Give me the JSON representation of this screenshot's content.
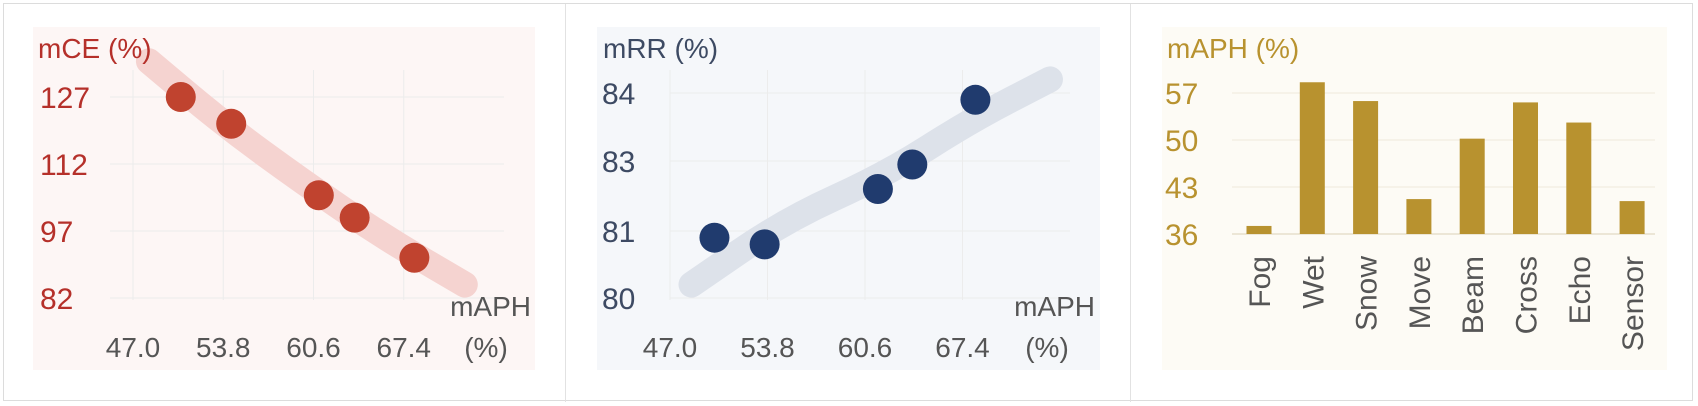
{
  "colors": {
    "red": "#b5302a",
    "red_marker": "#c0432f",
    "red_band": "#f5d3d0",
    "red_panel_bg": "#fdf6f5",
    "navy": "#203b6e",
    "navy_text": "#3d4a63",
    "navy_band": "#dde2ea",
    "navy_panel_bg": "#f5f7fa",
    "gold": "#b8922f",
    "gold_panel_bg": "#fdfbf5",
    "axis_text": "#555555"
  },
  "chart_data": [
    {
      "type": "scatter",
      "title": "",
      "ylabel": "mCE (%)",
      "xlabel_line1": "mAPH",
      "xlabel_line2": "(%)",
      "x_ticks": [
        "47.0",
        "53.8",
        "60.6",
        "67.4"
      ],
      "y_ticks": [
        "82",
        "97",
        "112",
        "127"
      ],
      "xlim": [
        47.0,
        74.2
      ],
      "ylim": [
        82,
        127
      ],
      "grid": true,
      "points": [
        {
          "x": 50.6,
          "y": 127
        },
        {
          "x": 54.4,
          "y": 121
        },
        {
          "x": 61.0,
          "y": 105
        },
        {
          "x": 63.7,
          "y": 100
        },
        {
          "x": 68.2,
          "y": 91
        }
      ],
      "trend": [
        {
          "x": 48.2,
          "y": 135
        },
        {
          "x": 53.8,
          "y": 121
        },
        {
          "x": 59.8,
          "y": 108
        },
        {
          "x": 65.7,
          "y": 96
        },
        {
          "x": 72.0,
          "y": 85
        }
      ]
    },
    {
      "type": "scatter",
      "title": "",
      "ylabel": "mRR (%)",
      "xlabel_line1": "mAPH",
      "xlabel_line2": "(%)",
      "x_ticks": [
        "47.0",
        "53.8",
        "60.6",
        "67.4"
      ],
      "y_ticks": [
        "80",
        "81",
        "83",
        "84"
      ],
      "xlim": [
        47.0,
        74.2
      ],
      "ylim": [
        80,
        84
      ],
      "grid": true,
      "points": [
        {
          "x": 50.1,
          "y": 80.9
        },
        {
          "x": 53.6,
          "y": 80.8
        },
        {
          "x": 61.5,
          "y": 82.2
        },
        {
          "x": 63.9,
          "y": 82.9
        },
        {
          "x": 68.3,
          "y": 83.9
        }
      ],
      "trend": [
        {
          "x": 48.5,
          "y": 80.2
        },
        {
          "x": 55.0,
          "y": 81.3
        },
        {
          "x": 62.0,
          "y": 82.6
        },
        {
          "x": 68.0,
          "y": 83.6
        },
        {
          "x": 73.5,
          "y": 84.2
        }
      ]
    },
    {
      "type": "bar",
      "title": "",
      "ylabel": "mAPH (%)",
      "categories": [
        "Fog",
        "Wet",
        "Snow",
        "Move",
        "Beam",
        "Cross",
        "Echo",
        "Sensor"
      ],
      "values": [
        37.2,
        58.6,
        55.8,
        41.2,
        50.2,
        55.6,
        52.6,
        40.9
      ],
      "y_ticks": [
        "36",
        "43",
        "50",
        "57"
      ],
      "ylim": [
        36,
        57
      ],
      "grid": true
    }
  ]
}
